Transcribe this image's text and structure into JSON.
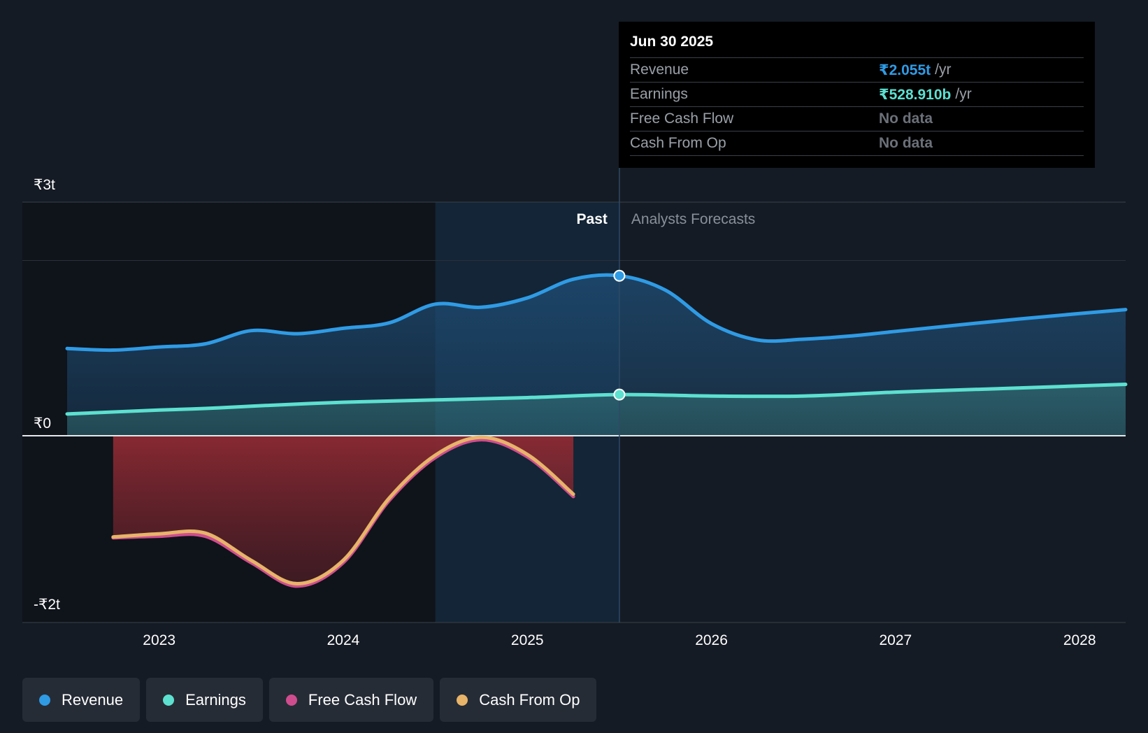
{
  "chart_data": {
    "type": "area",
    "y_tick_labels": [
      "₹3t",
      "₹0",
      "-₹2t"
    ],
    "x_tick_labels": [
      "2023",
      "2024",
      "2025",
      "2026",
      "2027",
      "2028"
    ],
    "x_domain": [
      2022.5,
      2028.25
    ],
    "y_domain_trillion": [
      -2.0,
      3.0
    ],
    "past_label": "Past",
    "forecast_label": "Analysts Forecasts",
    "divider_x": 2025.5,
    "highlight_start_x": 2024.5,
    "series": [
      {
        "name": "Revenue",
        "color": "#2f9be5",
        "points": [
          [
            2022.5,
            1.12
          ],
          [
            2022.75,
            1.1
          ],
          [
            2023.0,
            1.14
          ],
          [
            2023.25,
            1.18
          ],
          [
            2023.5,
            1.35
          ],
          [
            2023.75,
            1.31
          ],
          [
            2024.0,
            1.38
          ],
          [
            2024.25,
            1.45
          ],
          [
            2024.5,
            1.69
          ],
          [
            2024.75,
            1.65
          ],
          [
            2025.0,
            1.77
          ],
          [
            2025.25,
            2.01
          ],
          [
            2025.5,
            2.055
          ],
          [
            2025.75,
            1.87
          ],
          [
            2026.0,
            1.44
          ],
          [
            2026.25,
            1.23
          ],
          [
            2026.5,
            1.24
          ],
          [
            2026.75,
            1.28
          ],
          [
            2027.0,
            1.34
          ],
          [
            2027.5,
            1.46
          ],
          [
            2028.0,
            1.57
          ],
          [
            2028.25,
            1.62
          ]
        ]
      },
      {
        "name": "Earnings",
        "color": "#5de0d0",
        "points": [
          [
            2022.5,
            0.28
          ],
          [
            2023.0,
            0.33
          ],
          [
            2023.25,
            0.35
          ],
          [
            2023.5,
            0.38
          ],
          [
            2024.0,
            0.43
          ],
          [
            2024.5,
            0.46
          ],
          [
            2025.0,
            0.49
          ],
          [
            2025.5,
            0.529
          ],
          [
            2026.0,
            0.51
          ],
          [
            2026.5,
            0.51
          ],
          [
            2027.0,
            0.56
          ],
          [
            2027.5,
            0.6
          ],
          [
            2028.25,
            0.66
          ]
        ]
      },
      {
        "name": "Free Cash Flow",
        "color": "#cf4d8e",
        "points": [
          [
            2022.75,
            -1.31
          ],
          [
            2023.0,
            -1.29
          ],
          [
            2023.25,
            -1.29
          ],
          [
            2023.5,
            -1.63
          ],
          [
            2023.75,
            -1.93
          ],
          [
            2024.0,
            -1.63
          ],
          [
            2024.25,
            -0.83
          ],
          [
            2024.5,
            -0.28
          ],
          [
            2024.75,
            -0.05
          ],
          [
            2025.0,
            -0.27
          ],
          [
            2025.25,
            -0.78
          ]
        ]
      },
      {
        "name": "Cash From Op",
        "color": "#e7b46a",
        "points": [
          [
            2022.75,
            -1.3
          ],
          [
            2023.0,
            -1.26
          ],
          [
            2023.25,
            -1.25
          ],
          [
            2023.5,
            -1.6
          ],
          [
            2023.75,
            -1.9
          ],
          [
            2024.0,
            -1.6
          ],
          [
            2024.25,
            -0.8
          ],
          [
            2024.5,
            -0.25
          ],
          [
            2024.75,
            -0.02
          ],
          [
            2025.0,
            -0.24
          ],
          [
            2025.25,
            -0.75
          ]
        ]
      }
    ]
  },
  "tooltip": {
    "date": "Jun 30 2025",
    "rows": [
      {
        "label": "Revenue",
        "value": "₹2.055t",
        "unit": "/yr",
        "color": "#2f9be5"
      },
      {
        "label": "Earnings",
        "value": "₹528.910b",
        "unit": "/yr",
        "color": "#5de0d0"
      },
      {
        "label": "Free Cash Flow",
        "value": "No data",
        "unit": "",
        "color": "#6b7079"
      },
      {
        "label": "Cash From Op",
        "value": "No data",
        "unit": "",
        "color": "#6b7079"
      }
    ]
  },
  "legend": [
    {
      "label": "Revenue",
      "color": "#2f9be5"
    },
    {
      "label": "Earnings",
      "color": "#5de0d0"
    },
    {
      "label": "Free Cash Flow",
      "color": "#cf4d8e"
    },
    {
      "label": "Cash From Op",
      "color": "#e7b46a"
    }
  ]
}
